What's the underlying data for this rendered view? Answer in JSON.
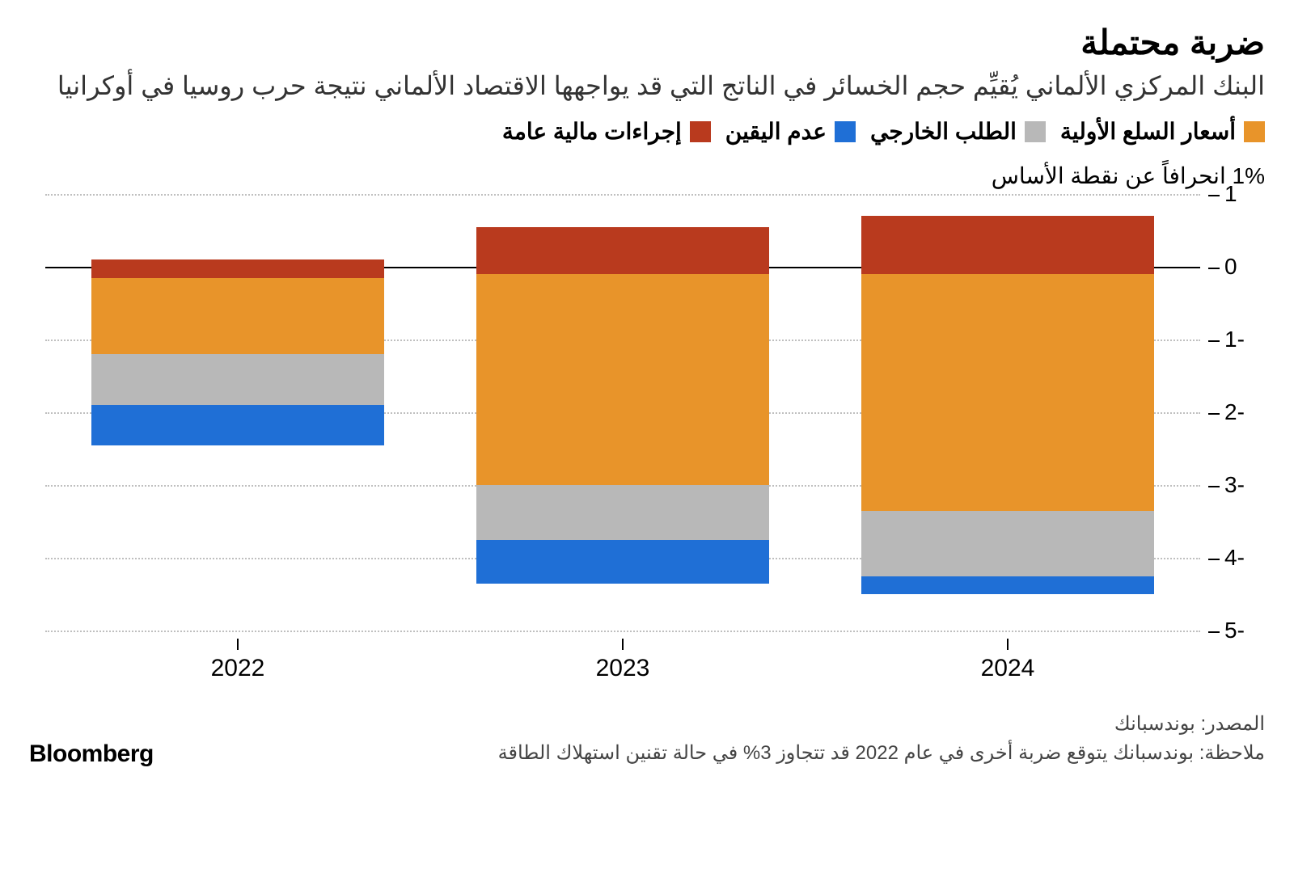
{
  "title": "ضربة محتملة",
  "subtitle": "البنك المركزي الألماني يُقيِّم حجم الخسائر في الناتج التي قد يواجهها الاقتصاد الألماني نتيجة حرب روسيا في أوكرانيا",
  "ylabel": "1% انحرافاً عن نقطة الأساس",
  "legend": [
    {
      "label": "أسعار السلع الأولية",
      "color": "#e8942a"
    },
    {
      "label": "الطلب الخارجي",
      "color": "#b8b8b8"
    },
    {
      "label": "عدم اليقين",
      "color": "#1f6fd6"
    },
    {
      "label": "إجراءات مالية عامة",
      "color": "#b93a1e"
    }
  ],
  "chart": {
    "type": "stacked-bar",
    "ylim_top": 1,
    "ylim_bottom": -5,
    "yticks": [
      1,
      0,
      "1-",
      "2-",
      "3-",
      "4-",
      "5-"
    ],
    "ytick_vals": [
      1,
      0,
      -1,
      -2,
      -3,
      -4,
      -5
    ],
    "zero_line_val": 0,
    "categories": [
      "2022",
      "2023",
      "2024"
    ],
    "bar_width_pct": 76,
    "grid_color": "#bfbfbf",
    "background": "#ffffff",
    "series": [
      {
        "key": "fiscal",
        "color": "#b93a1e",
        "values_top": [
          0.1,
          0.55,
          0.7
        ],
        "values_bottom": [
          -0.15,
          -0.1,
          -0.1
        ]
      },
      {
        "key": "commodity",
        "color": "#e8942a",
        "values_top": [
          -0.15,
          -0.1,
          -0.1
        ],
        "values_bottom": [
          -1.2,
          -3.0,
          -3.35
        ]
      },
      {
        "key": "external",
        "color": "#b8b8b8",
        "values_top": [
          -1.2,
          -3.0,
          -3.35
        ],
        "values_bottom": [
          -1.9,
          -3.75,
          -4.25
        ]
      },
      {
        "key": "uncertain",
        "color": "#1f6fd6",
        "values_top": [
          -1.9,
          -3.75,
          -4.25
        ],
        "values_bottom": [
          -2.45,
          -4.35,
          -4.5
        ]
      }
    ]
  },
  "source_label": "المصدر: بوندسبانك",
  "note": "ملاحظة: بوندسبانك يتوقع ضربة أخرى في عام 2022 قد تتجاوز 3%  في حالة تقنين استهلاك الطاقة",
  "brand": "Bloomberg"
}
